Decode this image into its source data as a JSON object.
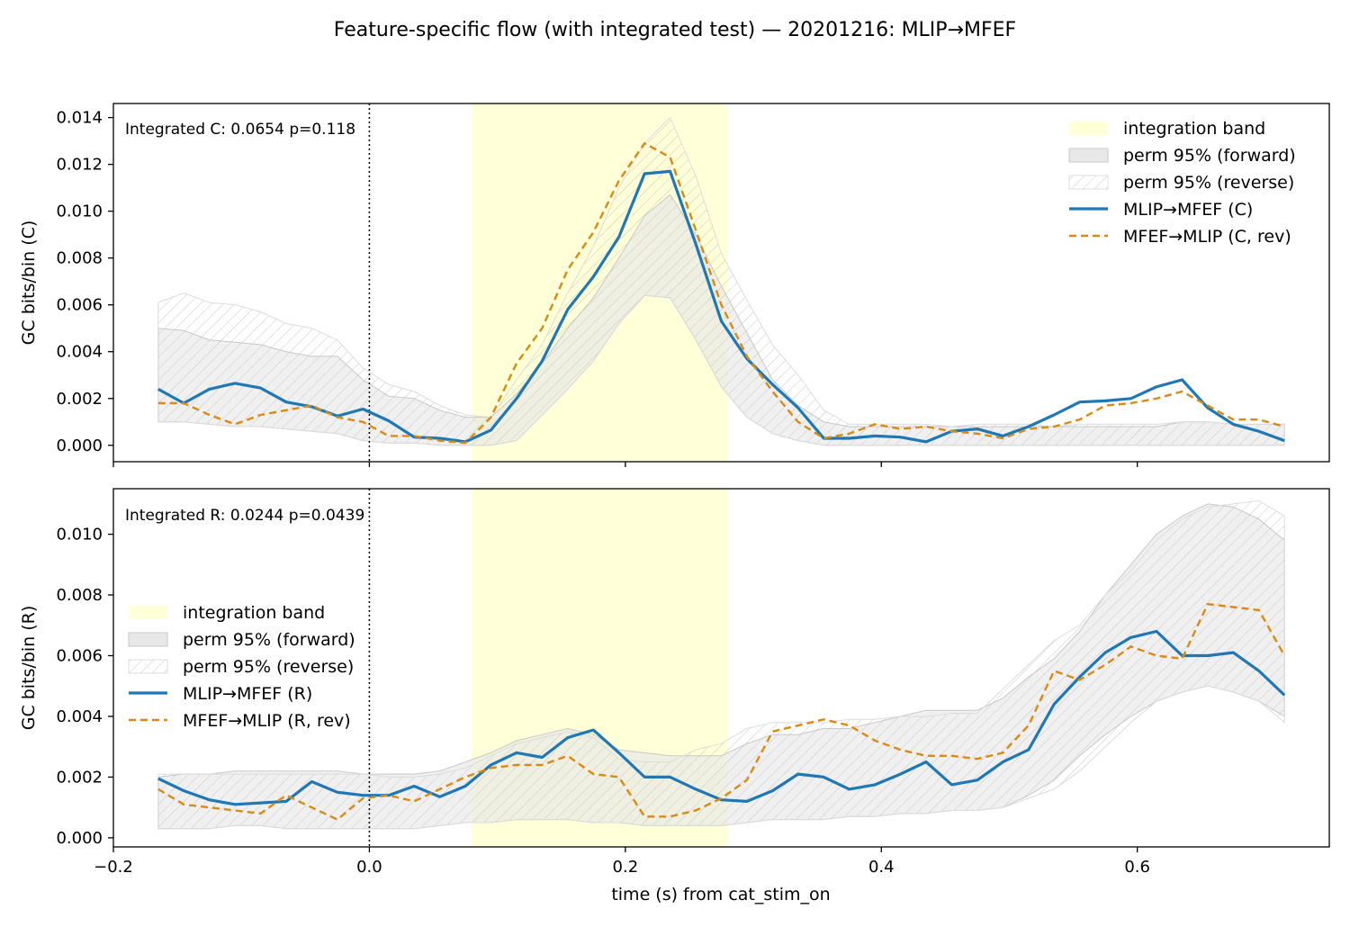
{
  "figure": {
    "title": "Feature-specific flow (with integrated test) — 20201216: MLIP→MFEF",
    "xlabel": "time (s) from cat_stim_on"
  },
  "colors": {
    "forward": "#1f77b4",
    "reverse": "#d98a12",
    "band": "#ffffd8",
    "perm_fill": "#e8e8e8",
    "perm_edge": "#c8c8c8",
    "hatch": "#cfcfcf"
  },
  "chart_data": [
    {
      "type": "line",
      "name": "C",
      "ylabel": "GC bits/bin (C)",
      "annotation": "Integrated C: 0.0654  p=0.118",
      "xlim": [
        -0.2,
        0.75
      ],
      "ylim": [
        -0.0007,
        0.0146
      ],
      "xticks": [
        -0.2,
        0.0,
        0.2,
        0.4,
        0.6
      ],
      "xtick_labels": [
        "−0.2",
        "0.0",
        "0.2",
        "0.4",
        "0.6"
      ],
      "yticks": [
        0.0,
        0.002,
        0.004,
        0.006,
        0.008,
        0.01,
        0.012,
        0.014
      ],
      "ytick_labels": [
        "0.000",
        "0.002",
        "0.004",
        "0.006",
        "0.008",
        "0.010",
        "0.012",
        "0.014"
      ],
      "show_xtick_labels": false,
      "stim_line_x": 0.0,
      "integration_band": [
        0.08,
        0.28
      ],
      "legend_position": "top-right",
      "legend": [
        "integration band",
        "perm 95% (forward)",
        "perm 95% (reverse)",
        "MLIP→MFEF (C)",
        "MFEF→MLIP (C, rev)"
      ],
      "x": [
        -0.165,
        -0.145,
        -0.125,
        -0.105,
        -0.085,
        -0.065,
        -0.045,
        -0.025,
        -0.005,
        0.015,
        0.035,
        0.055,
        0.075,
        0.095,
        0.115,
        0.135,
        0.155,
        0.175,
        0.195,
        0.215,
        0.235,
        0.255,
        0.275,
        0.295,
        0.315,
        0.335,
        0.355,
        0.375,
        0.395,
        0.415,
        0.435,
        0.455,
        0.475,
        0.495,
        0.515,
        0.535,
        0.555,
        0.575,
        0.595,
        0.615,
        0.635,
        0.655,
        0.675,
        0.695,
        0.715
      ],
      "series": [
        {
          "name": "MLIP→MFEF (C)",
          "values": [
            0.0024,
            0.0018,
            0.0024,
            0.00265,
            0.00245,
            0.00185,
            0.00165,
            0.00125,
            0.00155,
            0.00105,
            0.00035,
            0.0003,
            0.00015,
            0.00065,
            0.002,
            0.0036,
            0.0058,
            0.0072,
            0.0089,
            0.0116,
            0.0117,
            0.0086,
            0.0053,
            0.0037,
            0.0026,
            0.0016,
            0.0003,
            0.0003,
            0.0004,
            0.00035,
            0.00015,
            0.0006,
            0.0007,
            0.0004,
            0.0008,
            0.0013,
            0.00185,
            0.0019,
            0.002,
            0.0025,
            0.0028,
            0.0016,
            0.0009,
            0.0006,
            0.0002
          ]
        },
        {
          "name": "MFEF→MLIP (C, rev)",
          "values": [
            0.0018,
            0.0018,
            0.0013,
            0.0009,
            0.0013,
            0.0015,
            0.0017,
            0.0012,
            0.001,
            0.0004,
            0.0004,
            0.0002,
            0.0001,
            0.0012,
            0.0035,
            0.005,
            0.0075,
            0.0091,
            0.0113,
            0.0129,
            0.0123,
            0.0092,
            0.006,
            0.0038,
            0.0023,
            0.001,
            0.0003,
            0.0005,
            0.0009,
            0.0007,
            0.0008,
            0.0006,
            0.0005,
            0.0003,
            0.0007,
            0.0008,
            0.0011,
            0.0017,
            0.0018,
            0.002,
            0.0023,
            0.0017,
            0.0011,
            0.0011,
            0.0008
          ]
        }
      ],
      "perm_forward": {
        "lower": [
          0.001,
          0.001,
          0.0009,
          0.0008,
          0.0008,
          0.0007,
          0.0006,
          0.0005,
          0.0002,
          0.0001,
          0.0001,
          0.0,
          0.0,
          0.0,
          0.0002,
          0.0013,
          0.0024,
          0.0036,
          0.0052,
          0.0064,
          0.0063,
          0.0045,
          0.0025,
          0.0012,
          0.0005,
          0.0002,
          0.0,
          0.0,
          0.0,
          0.0,
          0.0,
          0.0,
          0.0,
          0.0,
          0.0,
          0.0,
          0.0,
          0.0,
          0.0,
          0.0,
          0.0,
          0.0,
          0.0,
          0.0,
          0.0
        ],
        "upper": [
          0.005,
          0.0049,
          0.0045,
          0.0044,
          0.0043,
          0.004,
          0.0038,
          0.0038,
          0.0028,
          0.0021,
          0.002,
          0.0015,
          0.0012,
          0.0012,
          0.0022,
          0.0035,
          0.005,
          0.0063,
          0.008,
          0.0098,
          0.0107,
          0.009,
          0.0068,
          0.0048,
          0.0028,
          0.0017,
          0.001,
          0.0008,
          0.0008,
          0.0008,
          0.0008,
          0.0008,
          0.0008,
          0.0008,
          0.0008,
          0.0008,
          0.0008,
          0.0008,
          0.0008,
          0.0008,
          0.001,
          0.001,
          0.0009,
          0.0009,
          0.0009
        ]
      },
      "perm_reverse": {
        "lower": [
          0.001,
          0.001,
          0.0009,
          0.0008,
          0.0008,
          0.0007,
          0.0006,
          0.0005,
          0.0002,
          0.0001,
          0.0001,
          0.0,
          0.0,
          0.0,
          0.0002,
          0.0013,
          0.0024,
          0.0036,
          0.0052,
          0.0064,
          0.0063,
          0.0045,
          0.0025,
          0.0012,
          0.0005,
          0.0002,
          0.0,
          0.0,
          0.0,
          0.0,
          0.0,
          0.0,
          0.0,
          0.0,
          0.0,
          0.0,
          0.0,
          0.0,
          0.0,
          0.0,
          0.0,
          0.0,
          0.0,
          0.0,
          0.0
        ],
        "upper": [
          0.0061,
          0.0065,
          0.0061,
          0.006,
          0.0057,
          0.0052,
          0.005,
          0.0045,
          0.0033,
          0.0026,
          0.0023,
          0.0017,
          0.0013,
          0.0012,
          0.0028,
          0.0043,
          0.0065,
          0.0085,
          0.011,
          0.0129,
          0.014,
          0.0115,
          0.0082,
          0.0062,
          0.0043,
          0.003,
          0.0015,
          0.0009,
          0.0009,
          0.0009,
          0.0009,
          0.0008,
          0.0009,
          0.0009,
          0.0009,
          0.0008,
          0.0009,
          0.0009,
          0.0009,
          0.0009,
          0.001,
          0.001,
          0.0009,
          0.0009,
          0.0009
        ]
      }
    },
    {
      "type": "line",
      "name": "R",
      "ylabel": "GC bits/bin (R)",
      "annotation": "Integrated R: 0.0244  p=0.0439",
      "xlim": [
        -0.2,
        0.75
      ],
      "ylim": [
        -0.0003,
        0.0115
      ],
      "xticks": [
        -0.2,
        0.0,
        0.2,
        0.4,
        0.6
      ],
      "xtick_labels": [
        "−0.2",
        "0.0",
        "0.2",
        "0.4",
        "0.6"
      ],
      "yticks": [
        0.0,
        0.002,
        0.004,
        0.006,
        0.008,
        0.01
      ],
      "ytick_labels": [
        "0.000",
        "0.002",
        "0.004",
        "0.006",
        "0.008",
        "0.010"
      ],
      "show_xtick_labels": true,
      "stim_line_x": 0.0,
      "integration_band": [
        0.08,
        0.28
      ],
      "legend_position": "center-left",
      "legend": [
        "integration band",
        "perm 95% (forward)",
        "perm 95% (reverse)",
        "MLIP→MFEF (R)",
        "MFEF→MLIP (R, rev)"
      ],
      "x": [
        -0.165,
        -0.145,
        -0.125,
        -0.105,
        -0.085,
        -0.065,
        -0.045,
        -0.025,
        -0.005,
        0.015,
        0.035,
        0.055,
        0.075,
        0.095,
        0.115,
        0.135,
        0.155,
        0.175,
        0.195,
        0.215,
        0.235,
        0.255,
        0.275,
        0.295,
        0.315,
        0.335,
        0.355,
        0.375,
        0.395,
        0.415,
        0.435,
        0.455,
        0.475,
        0.495,
        0.515,
        0.535,
        0.555,
        0.575,
        0.595,
        0.615,
        0.635,
        0.655,
        0.675,
        0.695,
        0.715
      ],
      "series": [
        {
          "name": "MLIP→MFEF (R)",
          "values": [
            0.00195,
            0.00155,
            0.00125,
            0.0011,
            0.00115,
            0.0012,
            0.00185,
            0.0015,
            0.0014,
            0.0014,
            0.0017,
            0.00135,
            0.0017,
            0.0024,
            0.0028,
            0.00265,
            0.0033,
            0.00355,
            0.0028,
            0.002,
            0.002,
            0.0016,
            0.00125,
            0.0012,
            0.00155,
            0.0021,
            0.002,
            0.0016,
            0.00175,
            0.0021,
            0.0025,
            0.00175,
            0.0019,
            0.0025,
            0.0029,
            0.0044,
            0.0053,
            0.0061,
            0.0066,
            0.0068,
            0.006,
            0.006,
            0.0061,
            0.0055,
            0.0047
          ]
        },
        {
          "name": "MFEF→MLIP (R, rev)",
          "values": [
            0.0016,
            0.0011,
            0.001,
            0.0009,
            0.0008,
            0.0014,
            0.001,
            0.0006,
            0.0013,
            0.0014,
            0.0012,
            0.0016,
            0.002,
            0.0023,
            0.0024,
            0.0024,
            0.0027,
            0.0021,
            0.002,
            0.0007,
            0.0007,
            0.0009,
            0.0013,
            0.0019,
            0.0035,
            0.0037,
            0.0039,
            0.0037,
            0.0032,
            0.0029,
            0.0027,
            0.0027,
            0.0026,
            0.0028,
            0.0037,
            0.0055,
            0.0052,
            0.0057,
            0.0063,
            0.006,
            0.0059,
            0.0077,
            0.0076,
            0.0075,
            0.006
          ]
        }
      ],
      "perm_forward": {
        "lower": [
          0.0003,
          0.0003,
          0.0003,
          0.0004,
          0.0004,
          0.0003,
          0.0003,
          0.0003,
          0.0003,
          0.0003,
          0.0003,
          0.0004,
          0.0005,
          0.0005,
          0.0006,
          0.0006,
          0.0006,
          0.0005,
          0.0005,
          0.0004,
          0.0004,
          0.0004,
          0.0004,
          0.0005,
          0.0006,
          0.0006,
          0.0006,
          0.0007,
          0.0007,
          0.0008,
          0.0008,
          0.0009,
          0.0009,
          0.001,
          0.0014,
          0.0019,
          0.0027,
          0.0034,
          0.004,
          0.0045,
          0.0048,
          0.005,
          0.0048,
          0.0045,
          0.004
        ],
        "upper": [
          0.002,
          0.0021,
          0.0021,
          0.0022,
          0.0022,
          0.0022,
          0.0022,
          0.0022,
          0.0021,
          0.0021,
          0.0021,
          0.0022,
          0.0025,
          0.0028,
          0.0032,
          0.0034,
          0.0036,
          0.0034,
          0.0029,
          0.0028,
          0.0027,
          0.0027,
          0.0027,
          0.0031,
          0.0034,
          0.0034,
          0.0036,
          0.0036,
          0.0038,
          0.004,
          0.0042,
          0.0042,
          0.0042,
          0.0046,
          0.0053,
          0.0059,
          0.0068,
          0.008,
          0.009,
          0.01,
          0.0106,
          0.011,
          0.0109,
          0.0105,
          0.0098
        ]
      },
      "perm_reverse": {
        "lower": [
          0.0003,
          0.0003,
          0.0003,
          0.0004,
          0.0004,
          0.0003,
          0.0003,
          0.0003,
          0.0003,
          0.0003,
          0.0003,
          0.0004,
          0.0005,
          0.0005,
          0.0006,
          0.0006,
          0.0006,
          0.0005,
          0.0005,
          0.0004,
          0.0004,
          0.0004,
          0.0004,
          0.0005,
          0.0006,
          0.0006,
          0.0006,
          0.0007,
          0.0007,
          0.0008,
          0.0008,
          0.0009,
          0.0009,
          0.001,
          0.0013,
          0.0016,
          0.0022,
          0.003,
          0.0038,
          0.0045,
          0.0048,
          0.005,
          0.0048,
          0.0045,
          0.0038
        ],
        "upper": [
          0.0021,
          0.0021,
          0.0021,
          0.0021,
          0.0021,
          0.0021,
          0.0021,
          0.0021,
          0.0021,
          0.002,
          0.002,
          0.0021,
          0.0023,
          0.0027,
          0.0031,
          0.0033,
          0.0035,
          0.0033,
          0.0026,
          0.0025,
          0.0025,
          0.0029,
          0.0031,
          0.0036,
          0.0038,
          0.0038,
          0.0038,
          0.0039,
          0.0039,
          0.004,
          0.004,
          0.0041,
          0.0041,
          0.0049,
          0.0057,
          0.0065,
          0.007,
          0.008,
          0.0088,
          0.0098,
          0.0105,
          0.0109,
          0.011,
          0.0111,
          0.0106
        ]
      }
    }
  ]
}
